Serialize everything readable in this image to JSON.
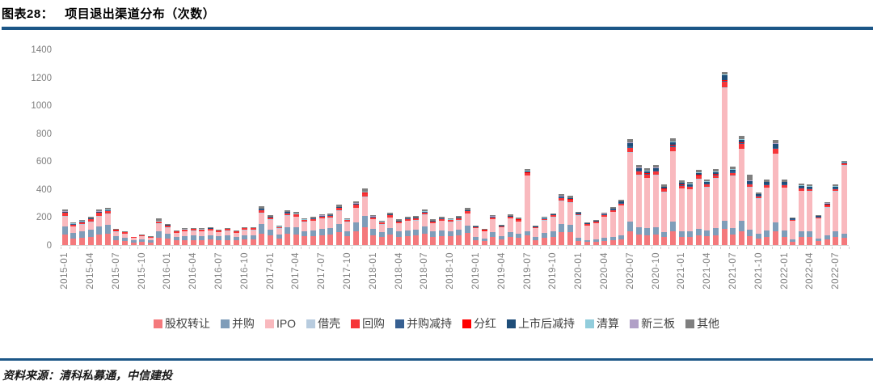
{
  "header": {
    "figure_label": "图表28：",
    "title": "项目退出渠道分布（次数）"
  },
  "theme": {
    "rule_color": "#1c5687",
    "axis_text_color": "#7f7f7f",
    "legend_text_color": "#404040"
  },
  "footer": {
    "source": "资料来源：清科私募通，中信建投"
  },
  "chart_data": {
    "type": "bar",
    "stacked": true,
    "title": "项目退出渠道分布（次数）",
    "xlabel": "",
    "ylabel": "",
    "ylim": [
      0,
      1400
    ],
    "y_ticks": [
      0,
      200,
      400,
      600,
      800,
      1000,
      1200,
      1400
    ],
    "grid": false,
    "legend_position": "bottom",
    "n_bars": 92,
    "x_start": "2015-01",
    "x_end": "2022-08",
    "tick_every": 3,
    "x_tick_labels": [
      "2015-01",
      "2015-04",
      "2015-07",
      "2015-10",
      "2016-01",
      "2016-04",
      "2016-07",
      "2016-10",
      "2017-01",
      "2017-04",
      "2017-07",
      "2017-10",
      "2018-01",
      "2018-04",
      "2018-07",
      "2018-10",
      "2019-01",
      "2019-04",
      "2019-07",
      "2019-10",
      "2020-01",
      "2020-04",
      "2020-07",
      "2020-10",
      "2021-01",
      "2021-04",
      "2021-07",
      "2021-10",
      "2022-01",
      "2022-04",
      "2022-07"
    ],
    "series": [
      {
        "name": "股权转让",
        "color": "#f4797c",
        "values": [
          75,
          48,
          54,
          60,
          75,
          80,
          35,
          30,
          19,
          23,
          19,
          55,
          45,
          32,
          36,
          37,
          36,
          38,
          34,
          37,
          32,
          39,
          39,
          82,
          69,
          45,
          80,
          77,
          62,
          66,
          72,
          74,
          93,
          62,
          101,
          130,
          70,
          56,
          75,
          59,
          66,
          67,
          82,
          59,
          66,
          62,
          67,
          85,
          36,
          30,
          56,
          38,
          57,
          51,
          70,
          36,
          53,
          60,
          95,
          91,
          31,
          21,
          23,
          30,
          35,
          42,
          98,
          74,
          71,
          74,
          56,
          99,
          60,
          59,
          70,
          61,
          70,
          115,
          73,
          101,
          66,
          49,
          60,
          96,
          60,
          25,
          57,
          57,
          28,
          40,
          57,
          50
        ]
      },
      {
        "name": "并购",
        "color": "#7f9db9",
        "values": [
          60,
          38,
          43,
          48,
          60,
          64,
          28,
          24,
          15,
          18,
          15,
          45,
          36,
          25,
          29,
          30,
          29,
          30,
          27,
          30,
          25,
          31,
          31,
          66,
          43,
          28,
          50,
          48,
          39,
          41,
          45,
          46,
          58,
          39,
          63,
          81,
          44,
          35,
          47,
          37,
          41,
          42,
          51,
          37,
          41,
          39,
          42,
          53,
          22,
          18,
          34,
          23,
          35,
          31,
          30,
          22,
          33,
          37,
          58,
          56,
          22,
          14,
          16,
          21,
          24,
          29,
          68,
          51,
          49,
          51,
          39,
          68,
          41,
          41,
          48,
          42,
          49,
          58,
          50,
          70,
          45,
          34,
          42,
          67,
          42,
          18,
          40,
          39,
          19,
          27,
          39,
          30
        ]
      },
      {
        "name": "IPO",
        "color": "#f9b9be",
        "values": [
          70,
          45,
          50,
          56,
          70,
          74,
          32,
          28,
          17,
          21,
          18,
          50,
          42,
          29,
          34,
          34,
          34,
          36,
          32,
          34,
          29,
          36,
          36,
          76,
          69,
          45,
          80,
          77,
          62,
          66,
          72,
          74,
          93,
          62,
          101,
          130,
          70,
          56,
          75,
          59,
          66,
          67,
          82,
          59,
          66,
          62,
          67,
          85,
          62,
          51,
          95,
          64,
          97,
          86,
          395,
          62,
          90,
          101,
          161,
          154,
          158,
          106,
          119,
          152,
          178,
          211,
          496,
          375,
          360,
          375,
          284,
          502,
          304,
          298,
          353,
          310,
          356,
          950,
          370,
          515,
          300,
          248,
          307,
          489,
          307,
          129,
          290,
          287,
          142,
          201,
          287,
          490
        ]
      },
      {
        "name": "借壳",
        "color": "#b8ccdf",
        "values": [
          5,
          3,
          4,
          4,
          5,
          5,
          2,
          2,
          1,
          1,
          1,
          4,
          3,
          2,
          2,
          2,
          2,
          3,
          2,
          2,
          2,
          3,
          3,
          5,
          2,
          1,
          3,
          2,
          2,
          2,
          2,
          2,
          3,
          2,
          3,
          4,
          2,
          2,
          2,
          2,
          2,
          2,
          3,
          2,
          2,
          2,
          2,
          3,
          1,
          1,
          2,
          1,
          2,
          2,
          3,
          1,
          2,
          2,
          4,
          4,
          1,
          1,
          1,
          1,
          1,
          2,
          4,
          3,
          3,
          3,
          2,
          4,
          2,
          2,
          3,
          2,
          3,
          5,
          3,
          4,
          3,
          2,
          2,
          4,
          2,
          1,
          2,
          2,
          1,
          2,
          2,
          2
        ]
      },
      {
        "name": "回购",
        "color": "#f63538",
        "values": [
          20,
          13,
          14,
          16,
          20,
          21,
          9,
          8,
          5,
          6,
          5,
          12,
          12,
          8,
          10,
          10,
          10,
          10,
          9,
          10,
          8,
          10,
          10,
          22,
          13,
          8,
          15,
          14,
          12,
          12,
          14,
          14,
          17,
          12,
          19,
          24,
          13,
          11,
          14,
          11,
          12,
          13,
          15,
          11,
          12,
          12,
          13,
          16,
          7,
          6,
          11,
          7,
          11,
          10,
          15,
          7,
          10,
          12,
          18,
          18,
          10,
          6,
          7,
          9,
          11,
          13,
          30,
          23,
          22,
          23,
          17,
          30,
          18,
          18,
          21,
          19,
          22,
          38,
          22,
          31,
          20,
          15,
          19,
          30,
          19,
          8,
          18,
          17,
          9,
          12,
          17,
          10
        ]
      },
      {
        "name": "并购减持",
        "color": "#376092",
        "values": [
          3,
          2,
          2,
          2,
          3,
          3,
          1,
          1,
          1,
          1,
          1,
          2,
          2,
          1,
          1,
          1,
          1,
          1,
          1,
          1,
          1,
          1,
          1,
          3,
          2,
          1,
          3,
          2,
          2,
          2,
          2,
          2,
          3,
          2,
          3,
          4,
          2,
          2,
          2,
          2,
          2,
          2,
          3,
          2,
          2,
          2,
          2,
          3,
          1,
          1,
          2,
          1,
          2,
          2,
          5,
          1,
          2,
          2,
          4,
          4,
          2,
          2,
          2,
          2,
          3,
          3,
          8,
          6,
          5,
          6,
          4,
          8,
          5,
          5,
          5,
          5,
          5,
          10,
          6,
          8,
          5,
          4,
          5,
          7,
          5,
          2,
          4,
          4,
          2,
          3,
          4,
          3
        ]
      },
      {
        "name": "分红",
        "color": "#ff0000",
        "values": [
          1,
          1,
          1,
          1,
          1,
          1,
          1,
          0,
          0,
          0,
          0,
          1,
          1,
          0,
          0,
          0,
          0,
          0,
          0,
          0,
          0,
          0,
          0,
          1,
          1,
          1,
          1,
          1,
          1,
          1,
          1,
          1,
          1,
          1,
          2,
          2,
          1,
          1,
          1,
          1,
          1,
          1,
          1,
          1,
          1,
          1,
          1,
          1,
          1,
          1,
          1,
          1,
          1,
          1,
          2,
          1,
          1,
          1,
          2,
          2,
          1,
          1,
          1,
          1,
          1,
          2,
          4,
          3,
          3,
          3,
          2,
          4,
          2,
          2,
          3,
          2,
          3,
          5,
          3,
          4,
          3,
          2,
          2,
          4,
          2,
          1,
          2,
          2,
          1,
          2,
          2,
          2
        ]
      },
      {
        "name": "上市后减持",
        "color": "#1f4e79",
        "values": [
          3,
          2,
          2,
          2,
          3,
          3,
          1,
          1,
          0,
          0,
          0,
          2,
          2,
          1,
          1,
          1,
          1,
          1,
          1,
          1,
          1,
          1,
          1,
          3,
          2,
          1,
          3,
          2,
          2,
          2,
          2,
          2,
          3,
          2,
          3,
          4,
          2,
          2,
          2,
          2,
          2,
          2,
          3,
          2,
          2,
          2,
          2,
          3,
          2,
          2,
          3,
          2,
          3,
          3,
          8,
          2,
          3,
          3,
          5,
          5,
          6,
          4,
          5,
          6,
          7,
          8,
          19,
          14,
          14,
          14,
          11,
          19,
          12,
          11,
          13,
          12,
          14,
          33,
          14,
          20,
          13,
          9,
          12,
          25,
          12,
          5,
          11,
          11,
          5,
          8,
          11,
          6
        ]
      },
      {
        "name": "清算",
        "color": "#92cddc",
        "values": [
          3,
          2,
          2,
          2,
          3,
          3,
          1,
          1,
          0,
          0,
          0,
          2,
          2,
          1,
          1,
          1,
          1,
          1,
          1,
          1,
          1,
          1,
          1,
          3,
          1,
          1,
          1,
          1,
          1,
          1,
          1,
          1,
          1,
          1,
          2,
          2,
          1,
          1,
          1,
          1,
          1,
          1,
          1,
          1,
          1,
          1,
          1,
          1,
          1,
          1,
          1,
          1,
          1,
          1,
          3,
          1,
          1,
          1,
          2,
          2,
          1,
          1,
          1,
          1,
          1,
          2,
          4,
          3,
          3,
          3,
          2,
          4,
          2,
          2,
          3,
          2,
          3,
          5,
          3,
          4,
          3,
          2,
          2,
          4,
          2,
          1,
          2,
          2,
          1,
          2,
          2,
          2
        ]
      },
      {
        "name": "新三板",
        "color": "#b1a0c7",
        "values": [
          1,
          1,
          1,
          1,
          1,
          1,
          1,
          0,
          0,
          0,
          0,
          1,
          1,
          0,
          0,
          0,
          0,
          0,
          0,
          0,
          0,
          0,
          0,
          1,
          1,
          1,
          1,
          1,
          1,
          1,
          1,
          1,
          1,
          1,
          2,
          2,
          1,
          1,
          1,
          1,
          1,
          1,
          1,
          1,
          1,
          1,
          1,
          1,
          1,
          1,
          1,
          1,
          1,
          1,
          3,
          1,
          1,
          1,
          2,
          2,
          1,
          1,
          1,
          1,
          1,
          2,
          4,
          3,
          3,
          3,
          2,
          4,
          2,
          2,
          3,
          2,
          3,
          5,
          3,
          4,
          3,
          2,
          2,
          4,
          2,
          1,
          2,
          2,
          1,
          2,
          2,
          2
        ]
      },
      {
        "name": "其他",
        "color": "#7f7f7f",
        "values": [
          13,
          8,
          9,
          10,
          13,
          13,
          6,
          5,
          3,
          4,
          3,
          20,
          7,
          5,
          6,
          6,
          6,
          6,
          6,
          6,
          5,
          6,
          7,
          14,
          11,
          7,
          13,
          12,
          10,
          10,
          11,
          12,
          15,
          10,
          16,
          20,
          11,
          9,
          12,
          9,
          10,
          11,
          13,
          9,
          10,
          10,
          11,
          13,
          6,
          5,
          9,
          6,
          9,
          8,
          8,
          5,
          8,
          9,
          15,
          14,
          7,
          5,
          5,
          7,
          8,
          10,
          23,
          17,
          16,
          17,
          13,
          23,
          14,
          14,
          16,
          14,
          16,
          15,
          17,
          23,
          40,
          11,
          14,
          22,
          14,
          6,
          13,
          13,
          6,
          9,
          13,
          5
        ]
      }
    ]
  }
}
